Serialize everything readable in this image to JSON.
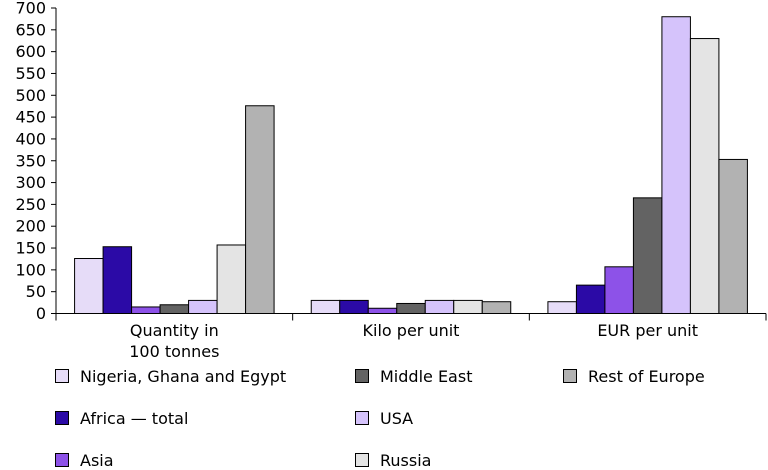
{
  "chart_data": {
    "type": "bar",
    "categories": [
      "Quantity in\n100 tonnes",
      "Kilo per unit",
      "EUR per unit"
    ],
    "series": [
      {
        "name": "Nigeria, Ghana and Egypt",
        "color": "#e6dcf8",
        "values": [
          126,
          30,
          27
        ]
      },
      {
        "name": "Africa — total",
        "color": "#2b0aa6",
        "values": [
          153,
          30,
          65
        ]
      },
      {
        "name": "Asia",
        "color": "#8d52e8",
        "values": [
          15,
          12,
          107
        ]
      },
      {
        "name": "Middle East",
        "color": "#636363",
        "values": [
          20,
          23,
          265
        ]
      },
      {
        "name": "USA",
        "color": "#d5c3fb",
        "values": [
          30,
          30,
          680
        ]
      },
      {
        "name": "Russia",
        "color": "#e4e4e4",
        "values": [
          157,
          30,
          630
        ]
      },
      {
        "name": "Rest of Europe",
        "color": "#b2b2b2",
        "values": [
          476,
          27,
          353
        ]
      }
    ],
    "yticks": [
      0,
      50,
      100,
      150,
      200,
      250,
      300,
      350,
      400,
      450,
      500,
      550,
      600,
      650,
      700
    ],
    "ylim": [
      0,
      700
    ],
    "grid": false,
    "legend_position": "bottom"
  }
}
